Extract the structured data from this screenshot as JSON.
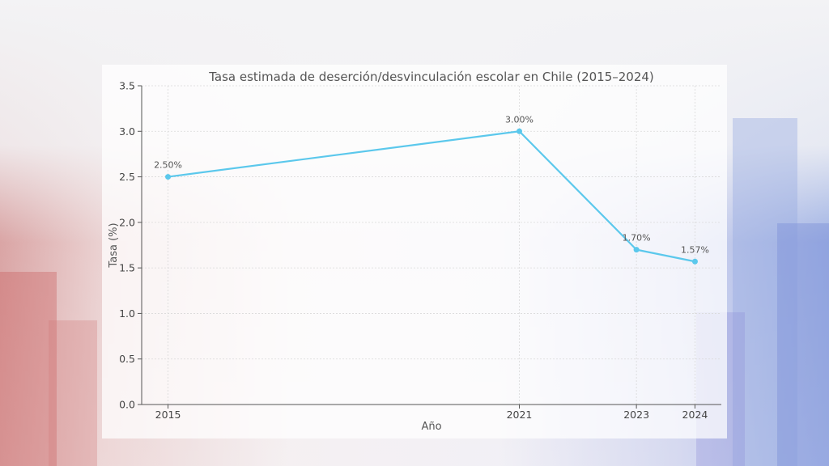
{
  "colors": {
    "line": "#5bc8ec",
    "axis": "#555555",
    "grid": "#d9d9d9"
  },
  "chart_data": {
    "type": "line",
    "title": "Tasa estimada de deserción/desvinculación escolar en Chile (2015–2024)",
    "xlabel": "Año",
    "ylabel": "Tasa (%)",
    "x": [
      2015,
      2021,
      2023,
      2024
    ],
    "x_tick_labels": [
      "2015",
      "2021",
      "2023",
      "2024"
    ],
    "ylim": [
      0,
      3.5
    ],
    "y_ticks": [
      0.0,
      0.5,
      1.0,
      1.5,
      2.0,
      2.5,
      3.0,
      3.5
    ],
    "y_tick_labels": [
      "0.0",
      "0.5",
      "1.0",
      "1.5",
      "2.0",
      "2.5",
      "3.0",
      "3.5"
    ],
    "grid": true,
    "series": [
      {
        "values": [
          2.5,
          3.0,
          1.7,
          1.57
        ],
        "data_labels": [
          "2.50%",
          "3.00%",
          "1.70%",
          "1.57%"
        ]
      }
    ]
  }
}
